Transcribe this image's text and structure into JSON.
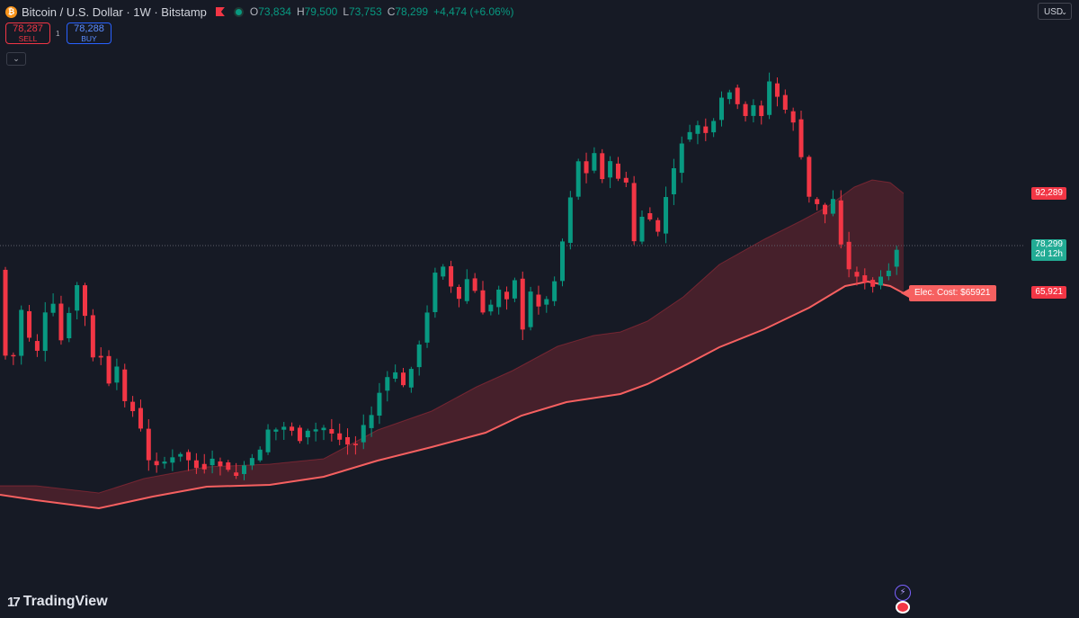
{
  "header": {
    "symbol_title": "Bitcoin / U.S. Dollar · 1W · Bitstamp",
    "ohlc": [
      {
        "key": "O",
        "value": "73,834"
      },
      {
        "key": "H",
        "value": "79,500"
      },
      {
        "key": "L",
        "value": "73,753"
      },
      {
        "key": "C",
        "value": "78,299"
      }
    ],
    "change": "+4,474 (+6.06%)"
  },
  "trade": {
    "sell_price": "78,287",
    "sell_label": "SELL",
    "spread": "1",
    "buy_price": "78,288",
    "buy_label": "BUY"
  },
  "currency": "USD",
  "branding": "TradingView",
  "price_scale": {
    "upper_band": "92,289",
    "last_price": "78,299",
    "countdown": "2d 12h",
    "lower_band": "65,921"
  },
  "annotation": "Elec. Cost: $65921",
  "icons": {
    "symbol": "bitcoin-icon",
    "flag": "flag-icon",
    "status": "market-open-dot-icon",
    "collapse": "chevron-down-icon",
    "bolt": "lightning-icon",
    "region": "us-flag-icon"
  },
  "colors": {
    "background": "#161a25",
    "up": "#089981",
    "down": "#f23645",
    "band_line": "#f66060",
    "band_fill": "rgba(242,54,69,0.2)"
  },
  "chart_data": {
    "type": "candlestick",
    "title": "Bitcoin / U.S. Dollar · 1W · Bitstamp",
    "interval": "1W",
    "last_close": 78299,
    "band": {
      "name": "Elec. Cost",
      "upper_last": 92289,
      "lower_last": 65921
    },
    "price_path": [
      [
        0,
        300
      ],
      [
        1,
        395
      ],
      [
        2,
        395
      ],
      [
        3,
        345
      ],
      [
        4,
        378
      ],
      [
        5,
        392
      ],
      [
        6,
        350
      ],
      [
        7,
        338
      ],
      [
        8,
        378
      ],
      [
        9,
        345
      ],
      [
        10,
        318
      ],
      [
        11,
        352
      ],
      [
        12,
        395
      ],
      [
        13,
        398
      ],
      [
        14,
        428
      ],
      [
        15,
        408
      ],
      [
        16,
        447
      ],
      [
        17,
        455
      ],
      [
        18,
        478
      ],
      [
        19,
        510
      ],
      [
        20,
        515
      ],
      [
        21,
        516
      ],
      [
        22,
        509
      ],
      [
        23,
        502
      ],
      [
        24,
        512
      ],
      [
        25,
        518
      ],
      [
        26,
        520
      ],
      [
        27,
        512
      ],
      [
        28,
        516
      ],
      [
        29,
        525
      ],
      [
        30,
        527
      ],
      [
        31,
        520
      ],
      [
        32,
        510
      ],
      [
        33,
        502
      ],
      [
        34,
        480
      ],
      [
        35,
        478
      ],
      [
        36,
        473
      ],
      [
        37,
        478
      ],
      [
        38,
        488
      ],
      [
        39,
        480
      ],
      [
        40,
        478
      ],
      [
        41,
        476
      ],
      [
        42,
        482
      ],
      [
        43,
        486
      ],
      [
        44,
        493
      ],
      [
        45,
        492
      ],
      [
        46,
        475
      ],
      [
        47,
        462
      ],
      [
        48,
        437
      ],
      [
        49,
        420
      ],
      [
        50,
        416
      ],
      [
        51,
        428
      ],
      [
        52,
        410
      ],
      [
        53,
        382
      ],
      [
        54,
        345
      ],
      [
        55,
        305
      ],
      [
        56,
        296
      ],
      [
        57,
        320
      ],
      [
        58,
        335
      ],
      [
        59,
        310
      ],
      [
        60,
        325
      ],
      [
        61,
        346
      ],
      [
        62,
        340
      ],
      [
        63,
        322
      ],
      [
        64,
        330
      ],
      [
        65,
        312
      ],
      [
        66,
        365
      ],
      [
        67,
        325
      ],
      [
        68,
        340
      ],
      [
        69,
        332
      ],
      [
        70,
        312
      ],
      [
        71,
        268
      ],
      [
        72,
        218
      ],
      [
        73,
        180
      ],
      [
        74,
        190
      ],
      [
        75,
        168
      ],
      [
        76,
        200
      ],
      [
        77,
        180
      ],
      [
        78,
        198
      ],
      [
        79,
        205
      ],
      [
        80,
        268
      ],
      [
        81,
        240
      ],
      [
        82,
        244
      ],
      [
        83,
        260
      ],
      [
        84,
        218
      ],
      [
        85,
        190
      ],
      [
        86,
        158
      ],
      [
        87,
        148
      ],
      [
        88,
        140
      ],
      [
        89,
        150
      ],
      [
        90,
        136
      ],
      [
        91,
        110
      ],
      [
        92,
        100
      ],
      [
        93,
        118
      ],
      [
        94,
        130
      ],
      [
        95,
        115
      ],
      [
        96,
        128
      ],
      [
        97,
        92
      ],
      [
        98,
        108
      ],
      [
        99,
        122
      ],
      [
        100,
        135
      ],
      [
        101,
        175
      ],
      [
        102,
        220
      ],
      [
        103,
        228
      ],
      [
        104,
        238
      ],
      [
        105,
        220
      ],
      [
        106,
        270
      ],
      [
        107,
        300
      ],
      [
        108,
        308
      ],
      [
        109,
        312
      ],
      [
        110,
        318
      ],
      [
        111,
        310
      ],
      [
        112,
        298
      ],
      [
        113,
        275
      ]
    ]
  }
}
